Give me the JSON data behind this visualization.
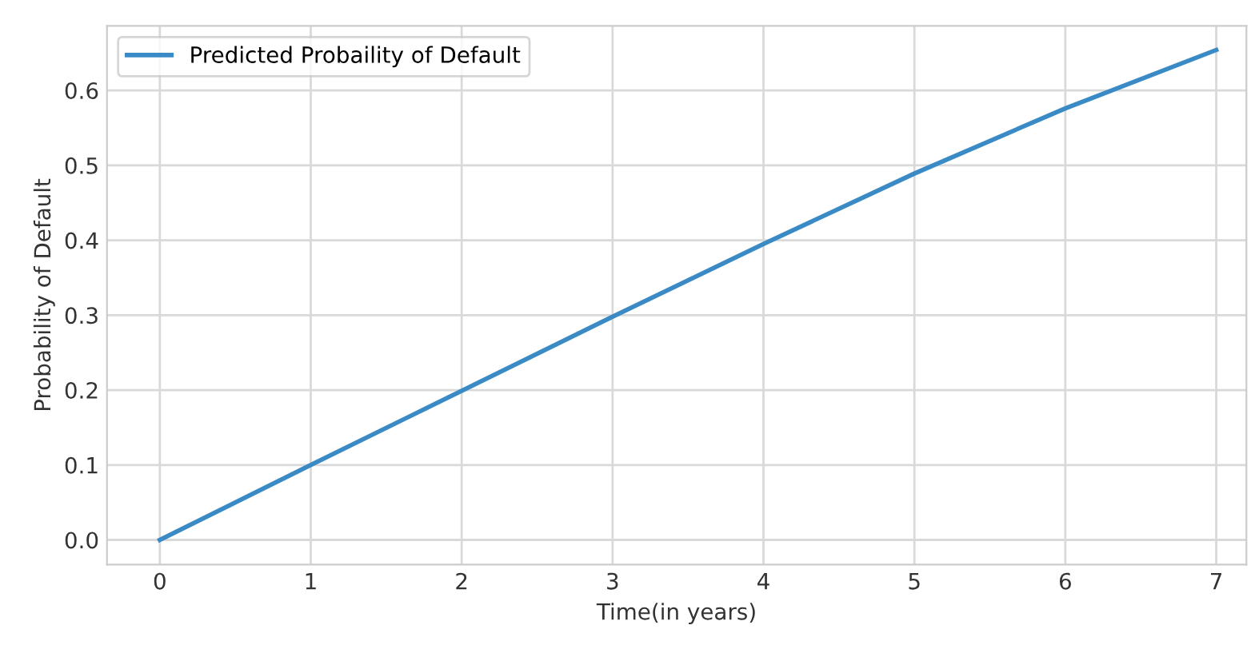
{
  "chart_data": {
    "type": "line",
    "xlabel": "Time(in years)",
    "ylabel": "Probability of Default",
    "x": [
      0,
      1,
      2,
      3,
      4,
      5,
      6,
      7
    ],
    "series": [
      {
        "name": "Predicted Probaility of Default",
        "color": "#3a8ac6",
        "values": [
          0,
          0.1,
          0.199,
          0.298,
          0.395,
          0.489,
          0.576,
          0.654
        ]
      }
    ],
    "xlim": [
      -0.35,
      7.2
    ],
    "ylim": [
      -0.033,
      0.686
    ],
    "xticks": [
      0,
      1,
      2,
      3,
      4,
      5,
      6,
      7
    ],
    "yticks": [
      {
        "value": 0,
        "label": "0.0"
      },
      0.1,
      0.2,
      0.3,
      0.4,
      0.5,
      0.6
    ],
    "grid": true,
    "legend": "top left",
    "marker": "none",
    "line_style": "solid"
  }
}
